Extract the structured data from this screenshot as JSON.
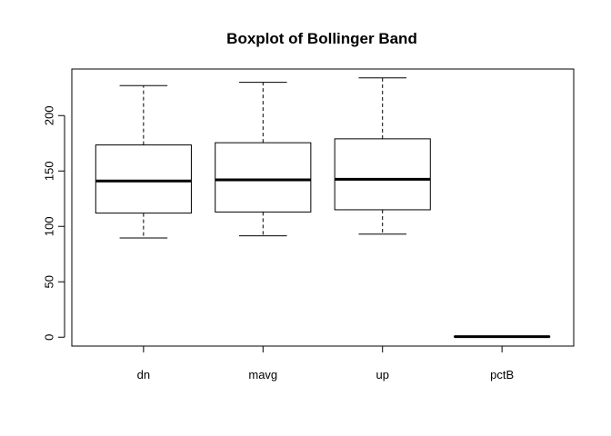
{
  "chart_data": {
    "type": "boxplot",
    "title": "Boxplot of Bollinger Band",
    "xlabel": "",
    "ylabel": "",
    "categories": [
      "dn",
      "mavg",
      "up",
      "pctB"
    ],
    "boxes": [
      {
        "category": "dn",
        "min": 89.5,
        "q1": 112,
        "median": 141,
        "q3": 173.5,
        "max": 227
      },
      {
        "category": "mavg",
        "min": 91.5,
        "q1": 113,
        "median": 142,
        "q3": 175.5,
        "max": 230
      },
      {
        "category": "up",
        "min": 93,
        "q1": 115,
        "median": 142.5,
        "q3": 179,
        "max": 234
      },
      {
        "category": "pctB",
        "min": 0.1,
        "q1": 0.4,
        "median": 0.55,
        "q3": 0.75,
        "max": 1.0
      }
    ],
    "yticks": [
      0,
      50,
      100,
      150,
      200
    ],
    "ylim": [
      -8,
      242
    ],
    "grid": false
  }
}
